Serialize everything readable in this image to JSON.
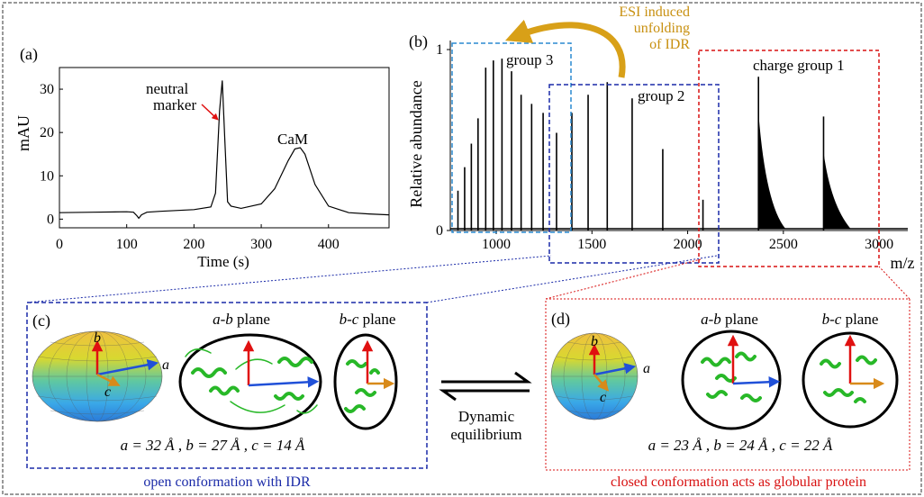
{
  "panel_a": {
    "label": "(a)",
    "ylabel": "mAU",
    "xlabel": "Time (s)",
    "xticks": [
      "0",
      "100",
      "200",
      "300",
      "400"
    ],
    "yticks": [
      "0",
      "10",
      "20",
      "30"
    ],
    "annotations": {
      "neutral_marker_line1": "neutral",
      "neutral_marker_line2": "marker",
      "cam": "CaM"
    }
  },
  "panel_b": {
    "label": "(b)",
    "ylabel": "Relative abundance",
    "xlabel": "m/z",
    "xticks": [
      "1000",
      "1500",
      "2000",
      "2500",
      "3000"
    ],
    "yticks": [
      "0",
      "1"
    ],
    "group3": "group 3",
    "group2": "group 2",
    "group1": "charge group 1",
    "esi_line1": "ESI induced",
    "esi_line2": "unfolding",
    "esi_line3": "of IDR"
  },
  "panel_c": {
    "label": "(c)",
    "ab_plane_italic": "a-b",
    "plane": "plane",
    "bc_plane_italic": "b-c",
    "axis_a": "a",
    "axis_b": "b",
    "axis_c": "c",
    "dims": "a = 32 Å , b = 27 Å , c = 14 Å",
    "caption": "open conformation with IDR"
  },
  "panel_d": {
    "label": "(d)",
    "ab_plane_italic": "a-b",
    "plane": "plane",
    "bc_plane_italic": "b-c",
    "axis_a": "a",
    "axis_b": "b",
    "axis_c": "c",
    "dims": "a = 23 Å , b = 24 Å , c = 22 Å",
    "caption": "closed conformation acts as globular protein"
  },
  "equilibrium": {
    "line1": "Dynamic",
    "line2": "equilibrium"
  },
  "chart_data": [
    {
      "type": "line",
      "xlabel": "Time (s)",
      "ylabel": "mAU",
      "xlim": [
        0,
        490
      ],
      "ylim": [
        -2,
        35
      ],
      "x": [
        0,
        50,
        100,
        110,
        115,
        118,
        122,
        130,
        150,
        200,
        225,
        232,
        238,
        242,
        246,
        250,
        255,
        270,
        300,
        320,
        340,
        350,
        358,
        365,
        380,
        400,
        430,
        460,
        490
      ],
      "y": [
        1.5,
        1.6,
        1.7,
        1.6,
        0.8,
        0.2,
        1.0,
        1.6,
        1.8,
        2.2,
        2.8,
        6,
        25,
        32,
        18,
        4,
        3,
        2.5,
        3.5,
        7,
        13.5,
        16.2,
        16.5,
        15,
        8,
        3,
        1.5,
        1.2,
        1.0
      ]
    },
    {
      "type": "bar",
      "xlabel": "m/z",
      "ylabel": "Relative abundance",
      "xlim": [
        760,
        3150
      ],
      "ylim": [
        0,
        1.05
      ],
      "x": [
        800,
        835,
        870,
        905,
        945,
        985,
        1030,
        1080,
        1130,
        1185,
        1245,
        1315,
        1395,
        1480,
        1580,
        1710,
        1870,
        2080,
        2370,
        2710
      ],
      "values": [
        0.22,
        0.35,
        0.48,
        0.62,
        0.9,
        0.94,
        0.95,
        0.88,
        0.75,
        0.7,
        0.65,
        0.54,
        0.65,
        0.75,
        0.82,
        0.73,
        0.45,
        0.17,
        0.85,
        0.63
      ]
    }
  ]
}
